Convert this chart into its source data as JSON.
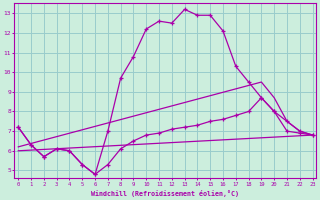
{
  "xlabel": "Windchill (Refroidissement éolien,°C)",
  "background_color": "#cceedd",
  "grid_color": "#99cccc",
  "line_color": "#aa00aa",
  "x_ticks": [
    0,
    1,
    2,
    3,
    4,
    5,
    6,
    7,
    8,
    9,
    10,
    11,
    12,
    13,
    14,
    15,
    16,
    17,
    18,
    19,
    20,
    21,
    22,
    23
  ],
  "y_ticks": [
    5,
    6,
    7,
    8,
    9,
    10,
    11,
    12,
    13
  ],
  "ylim": [
    4.6,
    13.5
  ],
  "xlim": [
    -0.3,
    23.3
  ],
  "series1_x": [
    0,
    1,
    2,
    3,
    4,
    5,
    6,
    7,
    8,
    9,
    10,
    11,
    12,
    13,
    14,
    15,
    16,
    17,
    18,
    19,
    20,
    21,
    22,
    23
  ],
  "series1_y": [
    7.2,
    6.3,
    5.7,
    6.1,
    6.0,
    5.3,
    4.8,
    7.0,
    9.7,
    10.8,
    12.2,
    12.6,
    12.5,
    13.2,
    12.9,
    12.9,
    12.1,
    10.3,
    9.5,
    8.7,
    8.0,
    7.0,
    6.9,
    6.8
  ],
  "series2_x": [
    0,
    1,
    2,
    3,
    4,
    5,
    6,
    7,
    8,
    9,
    10,
    11,
    12,
    13,
    14,
    15,
    16,
    17,
    18,
    19,
    20,
    21,
    22,
    23
  ],
  "series2_y": [
    7.2,
    6.3,
    5.7,
    6.1,
    6.0,
    5.3,
    4.8,
    5.3,
    6.1,
    6.5,
    6.8,
    6.9,
    7.1,
    7.2,
    7.3,
    7.5,
    7.6,
    7.8,
    8.0,
    8.7,
    8.0,
    7.5,
    7.0,
    6.8
  ],
  "series3_x": [
    0,
    19,
    20,
    21,
    22,
    23
  ],
  "series3_y": [
    6.2,
    9.5,
    8.7,
    7.5,
    7.0,
    6.8
  ],
  "series4_x": [
    0,
    23
  ],
  "series4_y": [
    6.0,
    6.8
  ]
}
